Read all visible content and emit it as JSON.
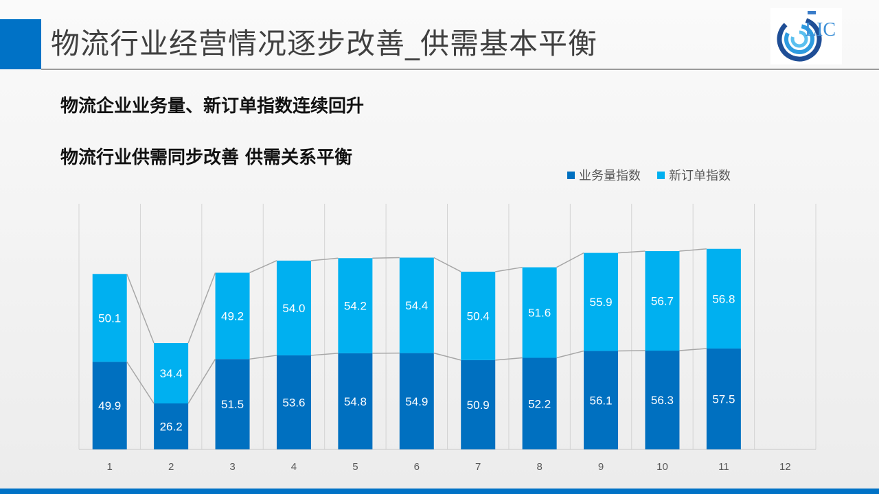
{
  "title": "物流行业经营情况逐步改善_供需基本平衡",
  "subtitles": [
    "物流企业业务量、新订单指数连续回升",
    "物流行业供需同步改善 供需关系平衡"
  ],
  "logo_text": "LIC",
  "colors": {
    "business": "#0070c0",
    "orders": "#00b0f0",
    "accent": "#0072c6"
  },
  "chart_data": {
    "type": "bar",
    "stacked": true,
    "categories": [
      "1",
      "2",
      "3",
      "4",
      "5",
      "6",
      "7",
      "8",
      "9",
      "10",
      "11",
      "12"
    ],
    "series": [
      {
        "name": "业务量指数",
        "values": [
          49.9,
          26.2,
          51.5,
          53.6,
          54.8,
          54.9,
          50.9,
          52.2,
          56.1,
          56.3,
          57.5,
          null
        ]
      },
      {
        "name": "新订单指数",
        "values": [
          50.1,
          34.4,
          49.2,
          54.0,
          54.2,
          54.4,
          50.4,
          51.6,
          55.9,
          56.7,
          56.8,
          null
        ]
      }
    ],
    "ylim": [
      0,
      140
    ],
    "grid": "vertical",
    "legend": "top-right",
    "series_lines": true
  }
}
